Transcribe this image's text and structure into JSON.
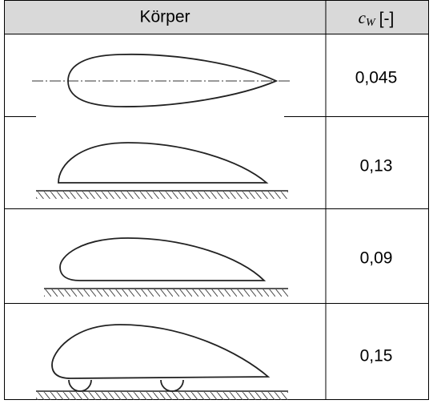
{
  "table": {
    "header": {
      "body": "Körper",
      "coefficient": {
        "symbol": "c",
        "subscript": "W",
        "unit": "[-]"
      }
    },
    "rows": [
      [
        "0,045"
      ],
      [
        "0,13"
      ],
      [
        "0,09"
      ],
      [
        "0,15"
      ]
    ]
  }
}
